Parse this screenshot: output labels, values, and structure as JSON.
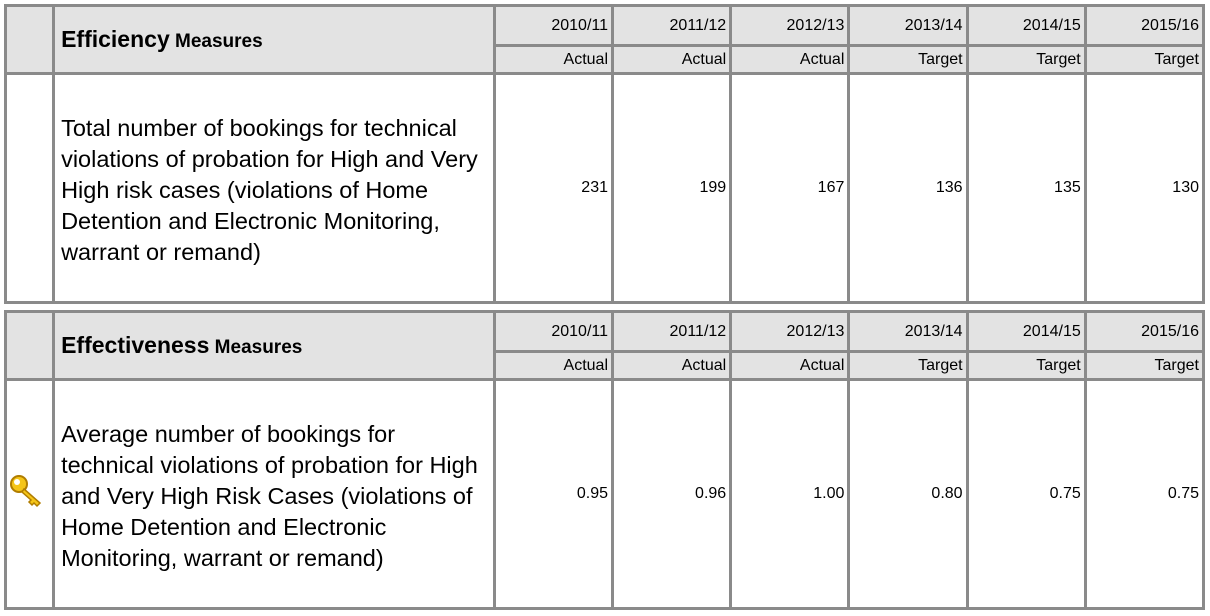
{
  "tables": [
    {
      "title": {
        "main": "Efficiency",
        "rest": "Measures"
      },
      "years": [
        "2010/11",
        "2011/12",
        "2012/13",
        "2013/14",
        "2014/15",
        "2015/16"
      ],
      "kinds": [
        "Actual",
        "Actual",
        "Actual",
        "Target",
        "Target",
        "Target"
      ],
      "measure": "Total number of bookings for technical violations of probation for High and Very High risk cases (violations of Home Detention and Electronic Monitoring, warrant or remand)",
      "values": [
        "231",
        "199",
        "167",
        "136",
        "135",
        "130"
      ]
    },
    {
      "title": {
        "main": "Effectiveness",
        "rest": "Measures"
      },
      "years": [
        "2010/11",
        "2011/12",
        "2012/13",
        "2013/14",
        "2014/15",
        "2015/16"
      ],
      "kinds": [
        "Actual",
        "Actual",
        "Actual",
        "Target",
        "Target",
        "Target"
      ],
      "measure": "Average number of bookings for technical violations of probation for High and Very High Risk Cases (violations of Home Detention and Electronic Monitoring, warrant or remand)",
      "values": [
        "0.95",
        "0.96",
        "1.00",
        "0.80",
        "0.75",
        "0.75"
      ],
      "key": true
    }
  ]
}
